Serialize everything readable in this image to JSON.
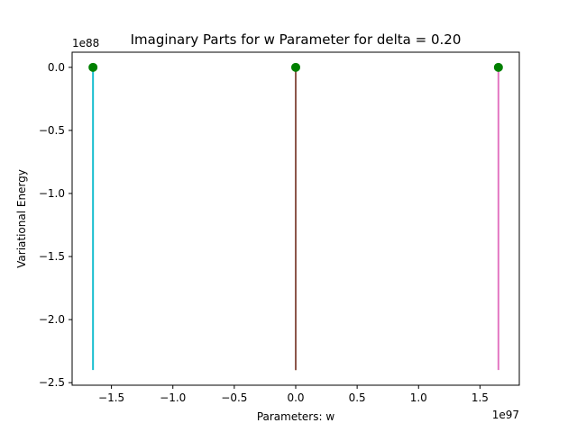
{
  "chart_data": {
    "type": "line",
    "title": "Imaginary Parts for w Parameter for delta = 0.20",
    "xlabel": "Parameters: w",
    "ylabel": "Variational Energy",
    "x_offset_label": "1e97",
    "y_offset_label": "1e88",
    "x_scale_exponent": 97,
    "y_scale_exponent": 88,
    "xlim": [
      -1.82,
      1.82
    ],
    "ylim": [
      -2.52,
      0.12
    ],
    "x_ticks": [
      -1.5,
      -1.0,
      -0.5,
      0.0,
      0.5,
      1.0,
      1.5
    ],
    "x_tick_labels": [
      "−1.5",
      "−1.0",
      "−0.5",
      "0.0",
      "0.5",
      "1.0",
      "1.5"
    ],
    "y_ticks": [
      0.0,
      -0.5,
      -1.0,
      -1.5,
      -2.0,
      -2.5
    ],
    "y_tick_labels": [
      "0.0",
      "−0.5",
      "−1.0",
      "−1.5",
      "−2.0",
      "−2.5"
    ],
    "grid": false,
    "series": [
      {
        "color": "#17becf",
        "x": [
          -1.65,
          -1.65
        ],
        "y": [
          -2.4,
          0.0
        ]
      },
      {
        "color": "#1f77b4",
        "x": [
          0.0,
          0.0
        ],
        "y": [
          -2.4,
          0.0
        ]
      },
      {
        "color": "#ff7f0e",
        "x": [
          0.0,
          0.0
        ],
        "y": [
          -2.4,
          0.0
        ]
      },
      {
        "color": "#8c564b",
        "x": [
          0.0,
          0.0
        ],
        "y": [
          -2.4,
          0.0
        ]
      },
      {
        "color": "#e377c2",
        "x": [
          1.65,
          1.65
        ],
        "y": [
          -2.4,
          0.0
        ]
      }
    ],
    "markers": {
      "color": "#008000",
      "x": [
        -1.65,
        0.0,
        1.65
      ],
      "y": [
        0.0,
        0.0,
        0.0
      ]
    }
  }
}
